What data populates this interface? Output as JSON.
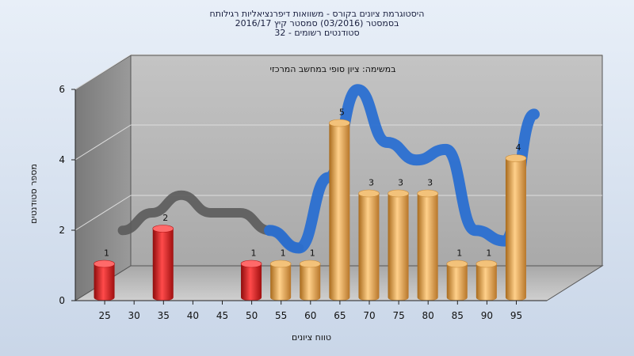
{
  "chart_data": {
    "type": "bar",
    "title_lines": [
      "היסטוגרמת ציונים בקורס - משוואות דיפרנציאליות רגילותח",
      "בסמסטר  (03/2016)  סמסטר קיץ 2016/17",
      "סטודנטים רשומים - 32"
    ],
    "subtitle": "במשימה: ציון סופי במחשב המרכזי",
    "xlabel": "טווח ציונים",
    "ylabel": "מספר סטודנטים",
    "categories": [
      "25",
      "30",
      "35",
      "40",
      "45",
      "50",
      "55",
      "60",
      "65",
      "70",
      "75",
      "80",
      "85",
      "90",
      "95"
    ],
    "values": [
      1,
      0,
      2,
      0,
      0,
      1,
      1,
      1,
      5,
      3,
      3,
      3,
      1,
      1,
      4
    ],
    "bar_colors": [
      "#e01b1b",
      "#e01b1b",
      "#e01b1b",
      "#e01b1b",
      "#e01b1b",
      "#e01b1b",
      "#e8a545",
      "#e8a545",
      "#e8a545",
      "#e8a545",
      "#e8a545",
      "#e8a545",
      "#e8a545",
      "#e8a545",
      "#e8a545"
    ],
    "yticks": [
      0,
      2,
      4,
      6
    ],
    "ylim": [
      0,
      6
    ],
    "grid": true,
    "trend_band": {
      "note": "smoothed distribution ribbon",
      "x": [
        "27.5",
        "32.5",
        "37.5",
        "42.5",
        "47.5",
        "52.5",
        "57.5",
        "62.5",
        "67.5",
        "72.5",
        "77.5",
        "82.5",
        "87.5",
        "92.5",
        "97.5"
      ],
      "values": [
        1.5,
        2.0,
        2.5,
        2.0,
        2.0,
        1.5,
        1.0,
        3.0,
        5.5,
        4.0,
        3.5,
        3.8,
        1.5,
        1.2,
        4.8
      ]
    }
  }
}
